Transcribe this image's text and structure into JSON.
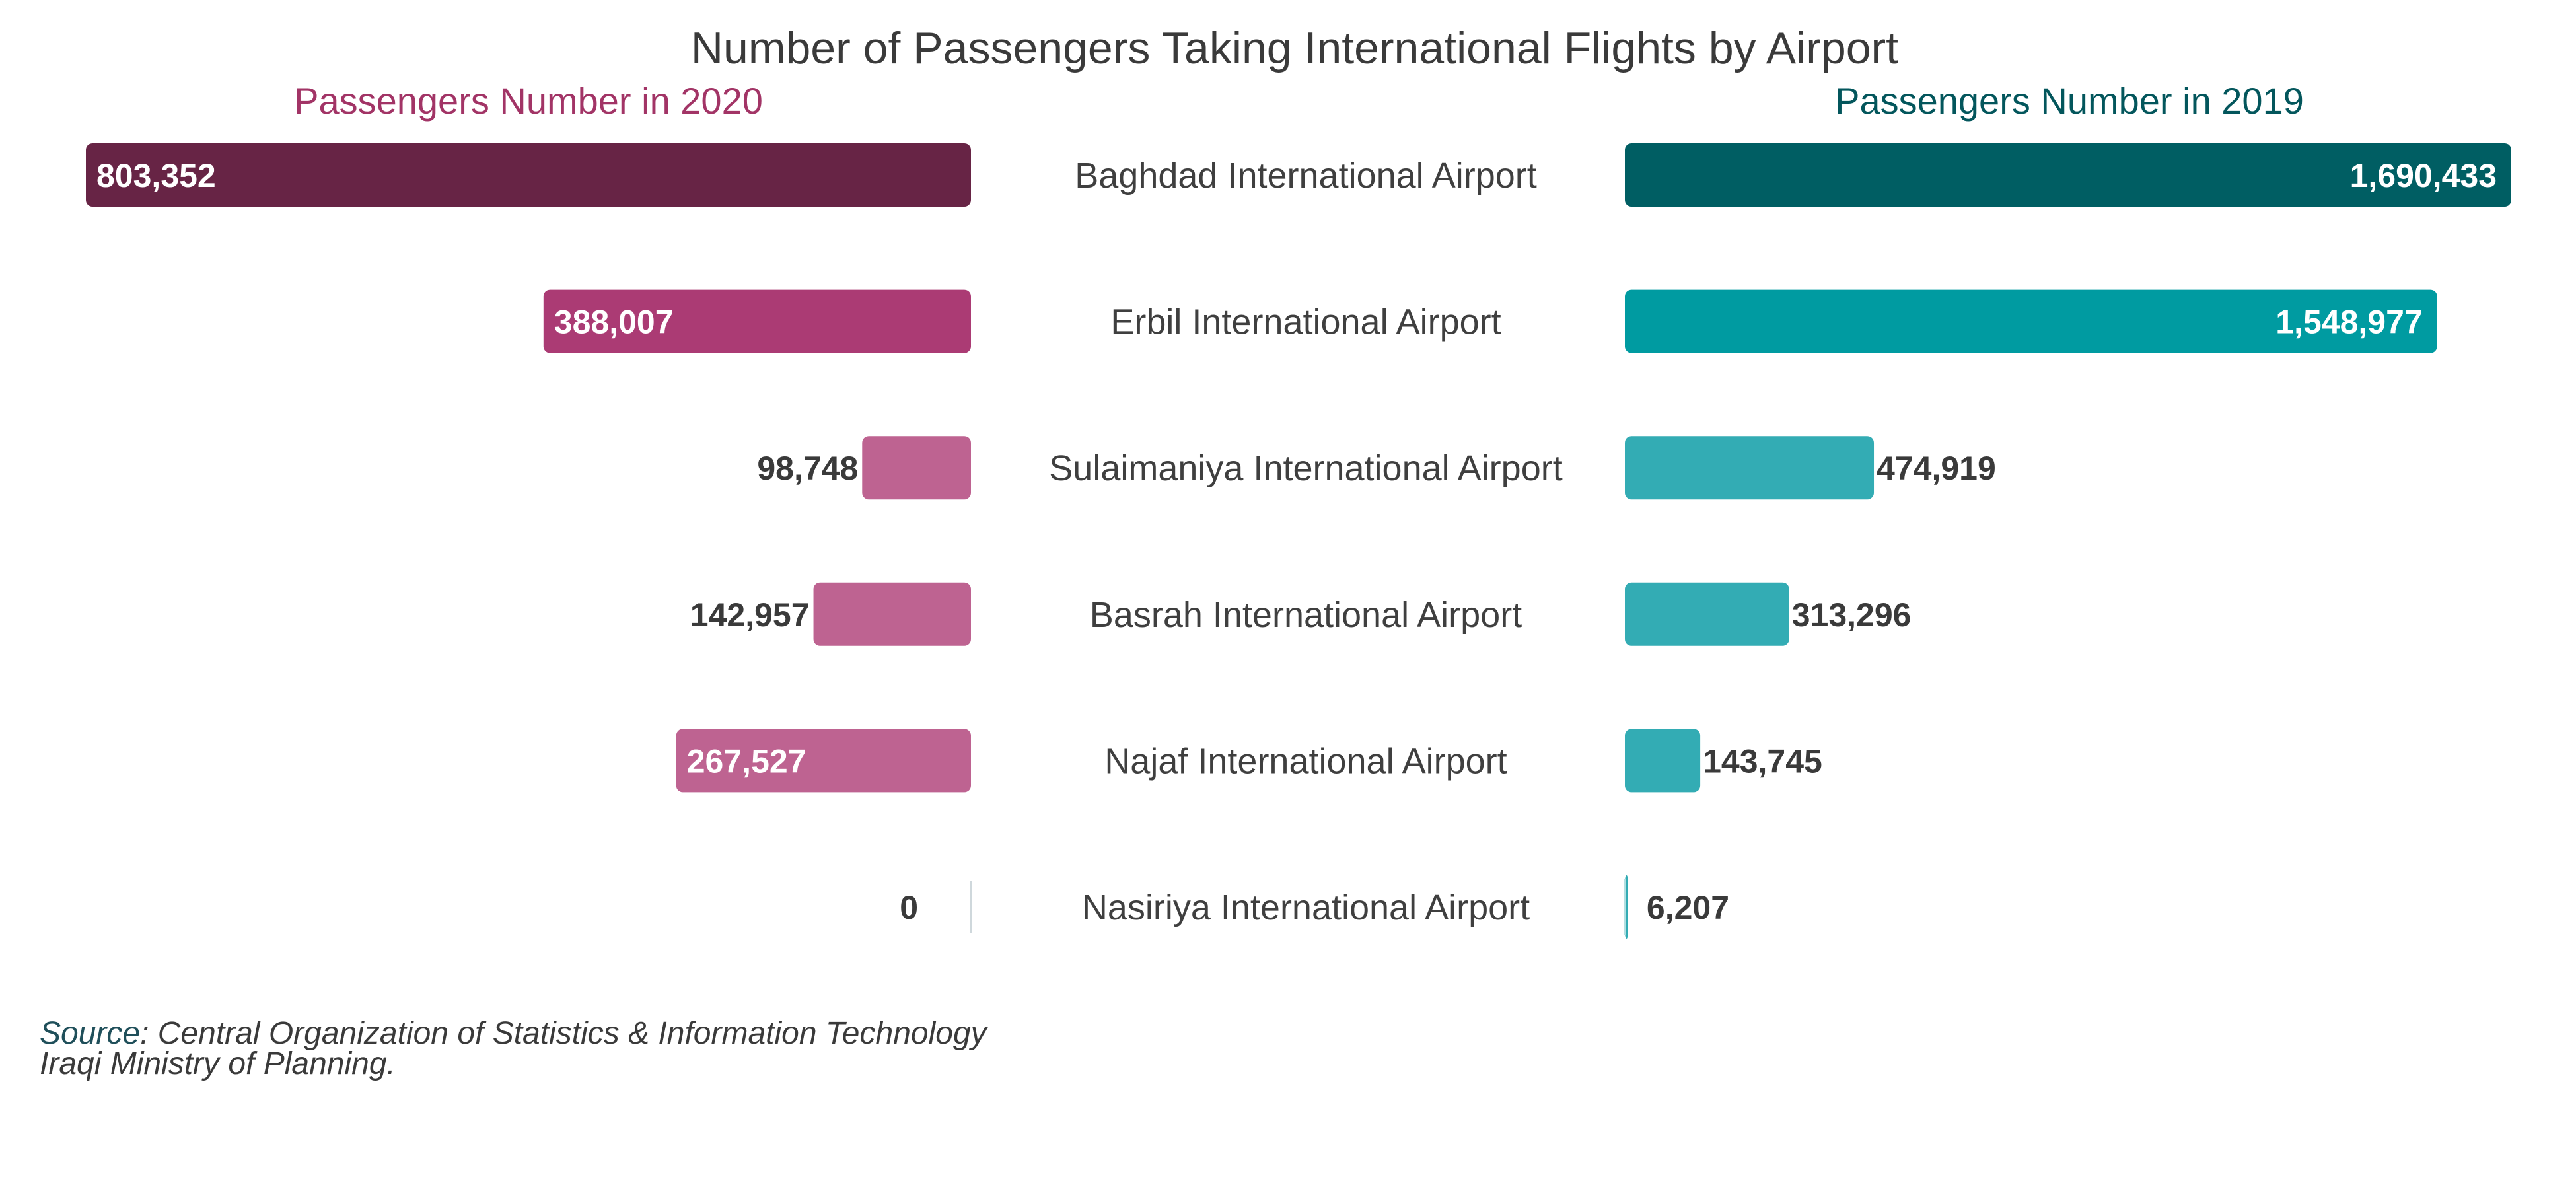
{
  "chart_data": {
    "type": "bar",
    "title": "Number of Passengers Taking International Flights by Airport",
    "categories": [
      "Baghdad International Airport",
      "Erbil International Airport",
      "Sulaimaniya International Airport",
      "Basrah  International Airport",
      "Najaf International Airport",
      "Nasiriya International Airport"
    ],
    "series": [
      {
        "name": "Passengers Number in 2020",
        "values": [
          803352,
          388007,
          98748,
          142957,
          267527,
          0
        ],
        "labels": [
          "803,352",
          "388,007",
          "98,748",
          "142,957",
          "267,527",
          "0"
        ]
      },
      {
        "name": "Passengers Number in 2019",
        "values": [
          1690433,
          1548977,
          474919,
          313296,
          143745,
          6207
        ],
        "labels": [
          "1,690,433",
          "1,548,977",
          "474,919",
          "313,296",
          "143,745",
          "6,207"
        ]
      }
    ],
    "legend": "top",
    "grid": false
  },
  "source": {
    "prefix": "Source",
    "line1": ": Central Organization of Statistics & Information Technology",
    "line2": "Iraqi Ministry of Planning."
  },
  "colors": {
    "left_2020": [
      "#672445",
      "#ab3b74",
      "#be6391",
      "#be6391",
      "#be6391",
      "#be6391"
    ],
    "right_2019": [
      "#005e63",
      "#009ba1",
      "#33acb4",
      "#33acb4",
      "#33acb4",
      "#33acb4"
    ],
    "title": "#3a3a3a",
    "subtitle_2020": "#a23466",
    "subtitle_2019": "#03565c"
  }
}
